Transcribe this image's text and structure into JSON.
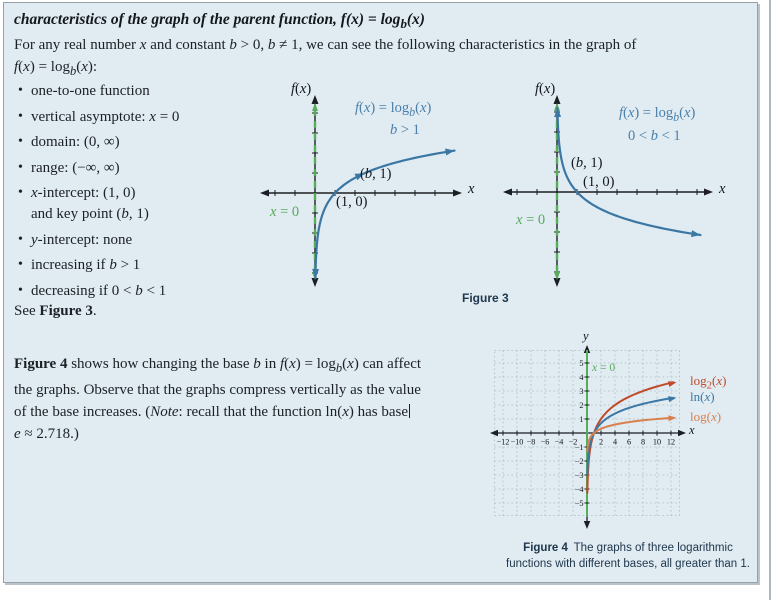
{
  "colors": {
    "panel_bg": "#e0ebf2",
    "panel_border": "#96a1a7",
    "axis": "#1b1f23",
    "green": "#57ab59",
    "curve_blue": "#3b77a3",
    "label_blue": "#4a80ab",
    "caption": "#20384d",
    "grid": "#adbac1",
    "log2": "#c14a2b",
    "ln": "#3c78a6",
    "log": "#d9804d",
    "text": "#1c2126"
  },
  "title_html": "characteristics of the graph of the parent function, f(x) = log<sub>b</sub>(x)",
  "intro_html": "For any real number <i>x</i> and constant <i>b</i> &gt; 0, <i>b</i> ≠ 1, we can see the following characteristics in the graph of<br><i>f</i>(<i>x</i>) = log<sub><i>b</i></sub>(<i>x</i>):",
  "bullets": [
    "one-to-one function",
    "vertical asymptote: <i>x</i> = 0",
    "domain: (0, ∞)",
    "range: (−∞, ∞)",
    "<i>x</i>-intercept: (1, 0)<br>and key point (<i>b</i>, 1)",
    "<i>y</i>-intercept: none",
    "increasing if <i>b</i> &gt; 1",
    "decreasing if 0 &lt; <i>b</i> &lt; 1"
  ],
  "see_figure_html": "See <b>Figure 3</b>.",
  "fig3": {
    "caption": "Figure 3",
    "graphs": [
      {
        "y_axis_label_html": "<i>f</i>(<i>x</i>)",
        "x_axis_label_html": "<i>x</i>",
        "fn_label_html": "<i>f</i>(<i>x</i>) = log<sub><i>b</i></sub>(<i>x</i>)",
        "cond_label_html": "<i>b</i> &gt; 1",
        "point_b_html": "(<i>b</i>, 1)",
        "point_x_html": "(1, 0)",
        "asymptote_label_html": "<i>x</i> = 0",
        "b_render": 2.5
      },
      {
        "y_axis_label_html": "<i>f</i>(<i>x</i>)",
        "x_axis_label_html": "<i>x</i>",
        "fn_label_html": "<i>f</i>(<i>x</i>) = log<sub><i>b</i></sub>(<i>x</i>)",
        "cond_label_html": "0 &lt; <i>b</i> &lt; 1",
        "point_b_html": "(<i>b</i>, 1)",
        "point_x_html": "(1, 0)",
        "asymptote_label_html": "<i>x</i> = 0",
        "b_render": 0.4
      }
    ]
  },
  "para2_html": "<b>Figure 4</b> shows how changing the base <i>b</i> in <i>f</i>(<i>x</i>) = log<sub><i>b</i></sub>(<i>x</i>) can affect<br>the graphs. Observe that the graphs compress vertically as the value<br>of the base increases. (<i>Note</i>: recall that the function ln(<i>x</i>) has base<span class=\"caret\" data-name=\"text-cursor\"></span><br><i>e</i> ≈ 2.718.)",
  "fig4": {
    "axis_y_label_html": "<i>y</i>",
    "axis_x_label_html": "<i>x</i>",
    "asymptote_label_html": "<i>x</i> = 0",
    "x_ticks": [
      -12,
      -10,
      -8,
      -6,
      -4,
      -2,
      2,
      4,
      6,
      8,
      10,
      12
    ],
    "y_ticks": [
      5,
      4,
      3,
      2,
      1,
      -1,
      -2,
      -3,
      -4,
      -5
    ],
    "series": [
      {
        "name": "log2(x)",
        "label_html": "log<sub>2</sub>(<i>x</i>)",
        "base": 2,
        "color": "#c14a2b"
      },
      {
        "name": "ln(x)",
        "label_html": "ln(<i>x</i>)",
        "base": 2.718281828,
        "color": "#3c78a6"
      },
      {
        "name": "log(x)",
        "label_html": "log(<i>x</i>)",
        "base": 10,
        "color": "#d9804d"
      }
    ],
    "caption_html": "<b>Figure 4</b>&ensp;The graphs of three logarithmic<br>functions with different bases, all greater than 1."
  },
  "chart_data": [
    {
      "id": "figure-3-left",
      "type": "line",
      "title": "f(x) = log_b(x), b > 1",
      "xlabel": "x",
      "ylabel": "f(x)",
      "vertical_asymptote": "x = 0",
      "key_points": [
        [
          1,
          0
        ],
        [
          "b",
          1
        ]
      ],
      "behavior": "increasing",
      "grid": false,
      "curve_color": "#3b77a3",
      "asymptote_color": "#57ab59"
    },
    {
      "id": "figure-3-right",
      "type": "line",
      "title": "f(x) = log_b(x), 0 < b < 1",
      "xlabel": "x",
      "ylabel": "f(x)",
      "vertical_asymptote": "x = 0",
      "key_points": [
        [
          1,
          0
        ],
        [
          "b",
          1
        ]
      ],
      "behavior": "decreasing",
      "grid": false,
      "curve_color": "#3b77a3",
      "asymptote_color": "#57ab59"
    },
    {
      "id": "figure-4",
      "type": "line",
      "xlabel": "x",
      "ylabel": "y",
      "xlim": [
        -13,
        13
      ],
      "ylim": [
        -6,
        6
      ],
      "x_ticks": [
        -12,
        -10,
        -8,
        -6,
        -4,
        -2,
        2,
        4,
        6,
        8,
        10,
        12
      ],
      "y_ticks": [
        -5,
        -4,
        -3,
        -2,
        -1,
        1,
        2,
        3,
        4,
        5
      ],
      "vertical_asymptote": "x = 0",
      "grid": true,
      "legend_position": "right",
      "x": [
        1,
        2,
        3,
        4,
        5,
        6,
        7,
        8,
        9,
        10,
        11,
        12
      ],
      "series": [
        {
          "name": "log2(x)",
          "values": [
            0,
            1,
            1.58,
            2,
            2.32,
            2.58,
            2.81,
            3,
            3.17,
            3.32,
            3.46,
            3.58
          ]
        },
        {
          "name": "ln(x)",
          "values": [
            0,
            0.69,
            1.1,
            1.39,
            1.61,
            1.79,
            1.95,
            2.08,
            2.2,
            2.3,
            2.4,
            2.48
          ]
        },
        {
          "name": "log(x)",
          "values": [
            0,
            0.3,
            0.48,
            0.6,
            0.7,
            0.78,
            0.85,
            0.9,
            0.95,
            1.0,
            1.04,
            1.08
          ]
        }
      ]
    }
  ]
}
